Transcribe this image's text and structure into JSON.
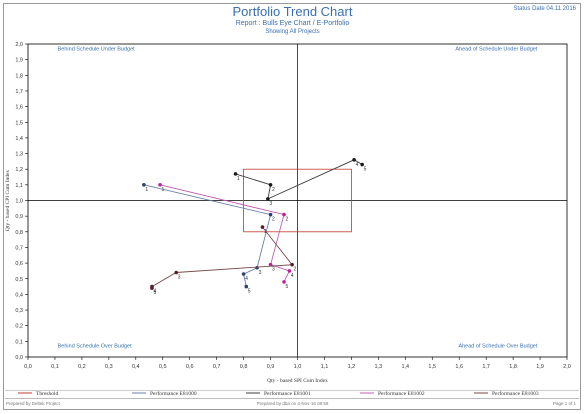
{
  "header": {
    "title": "Portfolio Trend Chart",
    "subtitle": "Report : Bulls Eye Chart / E-Portfolio",
    "subtitle2": "Showing All Projects",
    "status_date": "Status Date 04.11.2016"
  },
  "footer": {
    "left": "Prepared by Deltek Project",
    "middle": "Prepared by dba on 4-Nov-16 08:59",
    "right": "Page 1 of 1"
  },
  "colors": {
    "threshold": "#c0392b",
    "axis": "#000000",
    "quadrant_text": "#3a6fb0"
  },
  "chart_data": {
    "type": "scatter",
    "title": "",
    "xlabel": "Qty - based SPI Cum Index",
    "ylabel": "Qty - based CPI Cum Index",
    "xlim": [
      0,
      2
    ],
    "ylim": [
      0,
      2
    ],
    "x_ticks": [
      "0,0",
      "0,1",
      "0,2",
      "0,3",
      "0,4",
      "0,5",
      "0,6",
      "0,7",
      "0,8",
      "0,9",
      "1,0",
      "1,1",
      "1,2",
      "1,3",
      "1,4",
      "1,5",
      "1,6",
      "1,7",
      "1,8",
      "1,9",
      "2,0"
    ],
    "y_ticks": [
      "0,0",
      "0,1",
      "0,2",
      "0,3",
      "0,4",
      "0,5",
      "0,6",
      "0,7",
      "0,8",
      "0,9",
      "1,0",
      "1,1",
      "1,2",
      "1,3",
      "1,4",
      "1,5",
      "1,6",
      "1,7",
      "1,8",
      "1,9",
      "2,0"
    ],
    "quadrant_labels": {
      "top_left": "Behind Schedule Under Budget",
      "top_right": "Ahead of Schedule Under Budget",
      "bottom_left": "Behind Schedule Over Budget",
      "bottom_right": "Ahead of Schedule Over Budget"
    },
    "threshold": {
      "name": "Threshold",
      "x": [
        0.8,
        1.2
      ],
      "y": [
        0.8,
        1.2
      ],
      "color": "#c0392b"
    },
    "series": [
      {
        "name": "Performance E81000",
        "color": "#6b7fa8",
        "marker": "#2f3f6e",
        "points": [
          {
            "x": 0.43,
            "y": 1.1,
            "label": "1"
          },
          {
            "x": 0.9,
            "y": 0.91,
            "label": "2"
          },
          {
            "x": 0.85,
            "y": 0.57,
            "label": "3"
          },
          {
            "x": 0.8,
            "y": 0.53,
            "label": "4"
          },
          {
            "x": 0.81,
            "y": 0.45,
            "label": "5"
          }
        ]
      },
      {
        "name": "Performance E81001",
        "color": "#3d3d3d",
        "marker": "#1a1a1a",
        "points": [
          {
            "x": 0.77,
            "y": 1.17,
            "label": "1"
          },
          {
            "x": 0.9,
            "y": 1.1,
            "label": "2"
          },
          {
            "x": 0.89,
            "y": 1.01,
            "label": "3"
          },
          {
            "x": 1.21,
            "y": 1.26,
            "label": "4"
          },
          {
            "x": 1.24,
            "y": 1.23,
            "label": "5"
          }
        ]
      },
      {
        "name": "Performance E81002",
        "color": "#c060b0",
        "marker": "#c0209a",
        "points": [
          {
            "x": 0.49,
            "y": 1.1,
            "label": "1"
          },
          {
            "x": 0.95,
            "y": 0.91,
            "label": "2"
          },
          {
            "x": 0.9,
            "y": 0.59,
            "label": "3"
          },
          {
            "x": 0.97,
            "y": 0.55,
            "label": "4"
          },
          {
            "x": 0.95,
            "y": 0.48,
            "label": "5"
          }
        ]
      },
      {
        "name": "Performance E81003",
        "color": "#7a4a4a",
        "marker": "#5a1a2a",
        "points": [
          {
            "x": 0.87,
            "y": 0.83,
            "label": "1"
          },
          {
            "x": 0.98,
            "y": 0.59,
            "label": "2"
          },
          {
            "x": 0.55,
            "y": 0.54,
            "label": "3"
          },
          {
            "x": 0.46,
            "y": 0.45,
            "label": "4"
          },
          {
            "x": 0.46,
            "y": 0.44,
            "label": "5"
          }
        ]
      }
    ],
    "legend": [
      "Threshold",
      "Performance E81000",
      "Performance E81001",
      "Performance E81002",
      "Performance E81003"
    ],
    "legend_position": "bottom",
    "grid": false
  }
}
